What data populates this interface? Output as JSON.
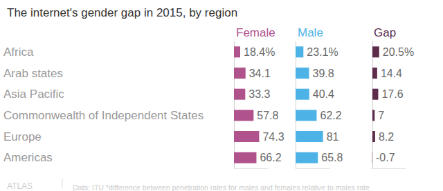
{
  "title": "The internet's gender gap in 2015, by region",
  "logo": "ATLAS",
  "note": "Data: ITU *difference between penetration rates for males and females relative to males rate",
  "chart_data": [
    {
      "type": "bar",
      "orientation": "horizontal",
      "title": "Female",
      "categories": [
        "Africa",
        "Arab states",
        "Asia Pacific",
        "Commonwealth of Independent States",
        "Europe",
        "Americas"
      ],
      "values": [
        18.4,
        34.1,
        33.3,
        57.8,
        74.3,
        66.2
      ],
      "value_labels": [
        "18.4%",
        "34.1",
        "33.3",
        "57.8",
        "74.3",
        "66.2"
      ],
      "color": "#b0528b",
      "xlim": [
        0,
        100
      ],
      "xticks": [],
      "grid": false,
      "data_labels": true,
      "tick_labels": "y"
    },
    {
      "type": "bar",
      "orientation": "horizontal",
      "title": "Male",
      "categories": [
        "Africa",
        "Arab states",
        "Asia Pacific",
        "Commonwealth of Independent States",
        "Europe",
        "Americas"
      ],
      "values": [
        23.1,
        39.8,
        40.4,
        62.2,
        81,
        65.8
      ],
      "value_labels": [
        "23.1%",
        "39.8",
        "40.4",
        "62.2",
        "81",
        "65.8"
      ],
      "color": "#4db3e6",
      "xlim": [
        0,
        100
      ],
      "xticks": [],
      "grid": false,
      "data_labels": true,
      "tick_labels": false
    },
    {
      "type": "bar",
      "orientation": "horizontal",
      "title": "Gap",
      "categories": [
        "Africa",
        "Arab states",
        "Asia Pacific",
        "Commonwealth of Independent States",
        "Europe",
        "Americas"
      ],
      "values": [
        20.5,
        14.4,
        17.6,
        7,
        8.2,
        -0.7
      ],
      "value_labels": [
        "20.5%",
        "14.4",
        "17.6",
        "7",
        "8.2",
        "-0.7"
      ],
      "color": "#5c2c4a",
      "xlim": [
        -2,
        100
      ],
      "xticks": [],
      "grid": false,
      "data_labels": true,
      "tick_labels": false
    }
  ]
}
